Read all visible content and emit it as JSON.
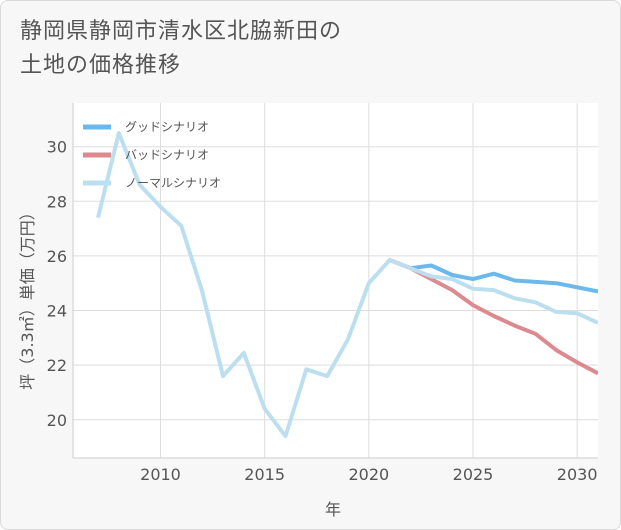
{
  "title_lines": [
    "静岡県静岡市清水区北脇新田の",
    "土地の価格推移"
  ],
  "colors": {
    "good": "#6ab8ec",
    "bad": "#dc8a8f",
    "normal": "#bcdff0",
    "grid": "#dddddd",
    "axis": "#555555"
  },
  "chart_data": {
    "type": "line",
    "title": "静岡県静岡市清水区北脇新田の土地の価格推移",
    "xlabel": "年",
    "ylabel": "坪（3.3㎡）単価（万円）",
    "xlim": [
      2005.8,
      2031.0
    ],
    "ylim": [
      18.6,
      31.6
    ],
    "x_ticks": [
      2010,
      2015,
      2020,
      2025,
      2030
    ],
    "y_ticks": [
      20,
      22,
      24,
      26,
      28,
      30
    ],
    "grid": true,
    "legend_position": "top-left",
    "series": [
      {
        "name": "グッドシナリオ",
        "color_key": "good",
        "points": [
          [
            2021,
            25.85
          ],
          [
            2022,
            25.55
          ],
          [
            2023,
            25.65
          ],
          [
            2024,
            25.3
          ],
          [
            2025,
            25.15
          ],
          [
            2026,
            25.35
          ],
          [
            2027,
            25.1
          ],
          [
            2028,
            25.05
          ],
          [
            2029,
            25.0
          ],
          [
            2030,
            24.85
          ],
          [
            2031,
            24.7
          ]
        ]
      },
      {
        "name": "バッドシナリオ",
        "color_key": "bad",
        "points": [
          [
            2021,
            25.85
          ],
          [
            2022,
            25.55
          ],
          [
            2023,
            25.15
          ],
          [
            2024,
            24.75
          ],
          [
            2025,
            24.2
          ],
          [
            2026,
            23.8
          ],
          [
            2027,
            23.45
          ],
          [
            2028,
            23.15
          ],
          [
            2029,
            22.55
          ],
          [
            2030,
            22.1
          ],
          [
            2031,
            21.7
          ]
        ]
      },
      {
        "name": "ノーマルシナリオ",
        "color_key": "normal",
        "points": [
          [
            2007,
            27.4
          ],
          [
            2008,
            30.5
          ],
          [
            2009,
            28.6
          ],
          [
            2010,
            27.8
          ],
          [
            2011,
            27.1
          ],
          [
            2012,
            24.7
          ],
          [
            2013,
            21.6
          ],
          [
            2014,
            22.45
          ],
          [
            2015,
            20.4
          ],
          [
            2016,
            19.4
          ],
          [
            2017,
            21.85
          ],
          [
            2018,
            21.6
          ],
          [
            2019,
            22.95
          ],
          [
            2020,
            25.0
          ],
          [
            2021,
            25.85
          ],
          [
            2022,
            25.55
          ],
          [
            2023,
            25.25
          ],
          [
            2024,
            25.15
          ],
          [
            2025,
            24.8
          ],
          [
            2026,
            24.75
          ],
          [
            2027,
            24.45
          ],
          [
            2028,
            24.3
          ],
          [
            2029,
            23.95
          ],
          [
            2030,
            23.9
          ],
          [
            2031,
            23.55
          ]
        ]
      }
    ]
  }
}
